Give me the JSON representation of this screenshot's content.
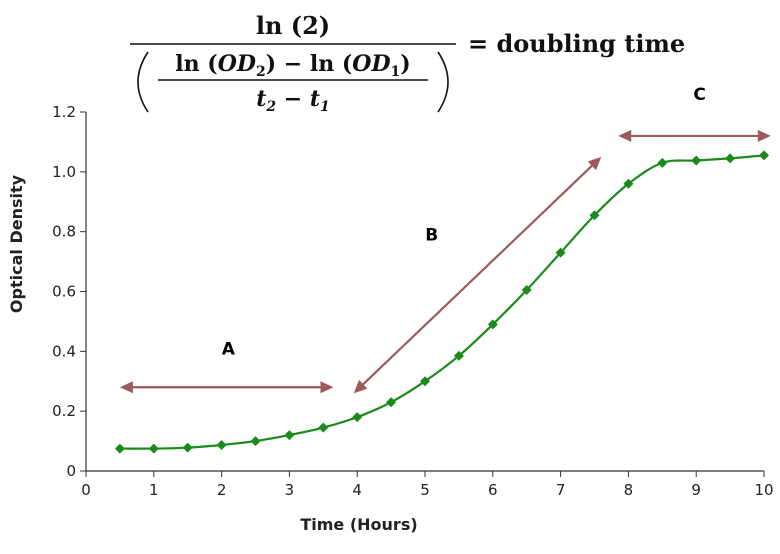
{
  "formula": {
    "numerator": "ln (2)",
    "inner_numerator_ln1": "ln (",
    "inner_numerator_od": "OD",
    "inner_numerator_sub2": "2",
    "inner_numerator_mid": ") − ln (",
    "inner_numerator_sub1": "1",
    "inner_numerator_close": ")",
    "inner_denominator_t": "t",
    "inner_denominator_sub2": "2",
    "inner_denominator_minus": " − t",
    "inner_denominator_sub1": "1",
    "rhs": "= doubling time"
  },
  "chart_data": {
    "type": "line",
    "xlabel": "Time (Hours)",
    "ylabel": "Optical Density",
    "xlim": [
      0,
      10
    ],
    "ylim": [
      0,
      1.2
    ],
    "x_ticks": [
      "0",
      "1",
      "2",
      "3",
      "4",
      "5",
      "6",
      "7",
      "8",
      "9",
      "10"
    ],
    "y_ticks": [
      "0",
      "0.2",
      "0.4",
      "0.6",
      "0.8",
      "1.0",
      "1.2"
    ],
    "grid": false,
    "series": [
      {
        "color": "#1a8a1a",
        "x": [
          0.5,
          1,
          1.5,
          2,
          2.5,
          3,
          3.5,
          4,
          4.5,
          5,
          5.5,
          6,
          6.5,
          7,
          7.5,
          8,
          8.5,
          9,
          9.5,
          10
        ],
        "y": [
          0.075,
          0.075,
          0.078,
          0.087,
          0.1,
          0.12,
          0.145,
          0.18,
          0.23,
          0.3,
          0.385,
          0.49,
          0.605,
          0.73,
          0.855,
          0.96,
          1.03,
          1.038,
          1.045,
          1.055
        ]
      }
    ],
    "annotations": [
      {
        "label": "A",
        "arrow_x": [
          0.5,
          3.65
        ],
        "arrow_y": [
          0.28,
          0.28
        ],
        "label_x": 2.1,
        "label_y": 0.39
      },
      {
        "label": "B",
        "arrow_x": [
          3.95,
          7.6
        ],
        "arrow_y": [
          0.26,
          1.05
        ],
        "label_x": 5.1,
        "label_y": 0.77
      },
      {
        "label": "C",
        "arrow_x": [
          7.85,
          10.1
        ],
        "arrow_y": [
          1.12,
          1.12
        ],
        "label_x": 9.05,
        "label_y": 1.24
      }
    ],
    "arrow_color": "#9c5a5a"
  }
}
